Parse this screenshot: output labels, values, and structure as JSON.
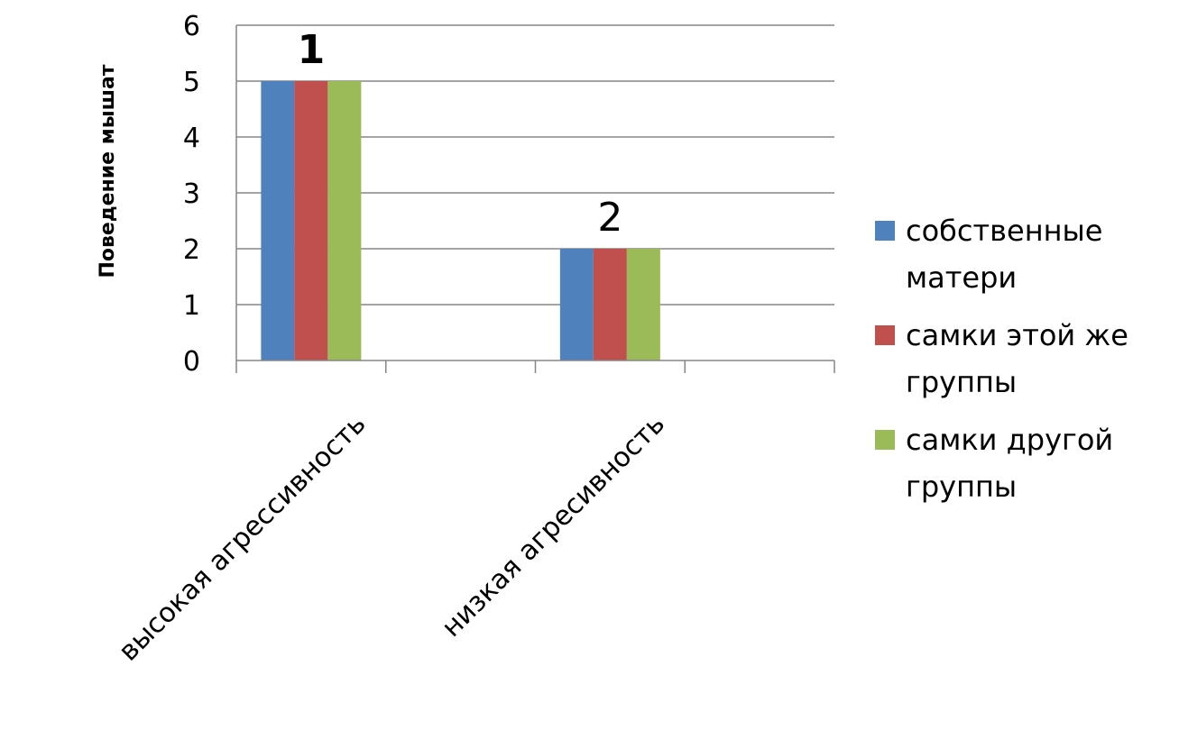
{
  "chart_data": {
    "type": "bar",
    "categories": [
      "высокая агрессивность",
      "низкая агресивность"
    ],
    "series": [
      {
        "name": "собственные матери",
        "values": [
          5,
          2
        ],
        "color": "#4F81BD"
      },
      {
        "name": "самки этой же группы",
        "values": [
          5,
          2
        ],
        "color": "#C0504D"
      },
      {
        "name": "самки другой группы",
        "values": [
          5,
          2
        ],
        "color": "#9BBB59"
      }
    ],
    "ylabel": "Поведение мышат",
    "ylim": [
      0,
      6
    ],
    "yticks": [
      0,
      1,
      2,
      3,
      4,
      5,
      6
    ],
    "grid": true,
    "legend_position": "right",
    "annotations": [
      {
        "text": "1",
        "category": "высокая агрессивность",
        "bold": true
      },
      {
        "text": "2",
        "category": "низкая агресивность",
        "bold": false
      }
    ]
  }
}
